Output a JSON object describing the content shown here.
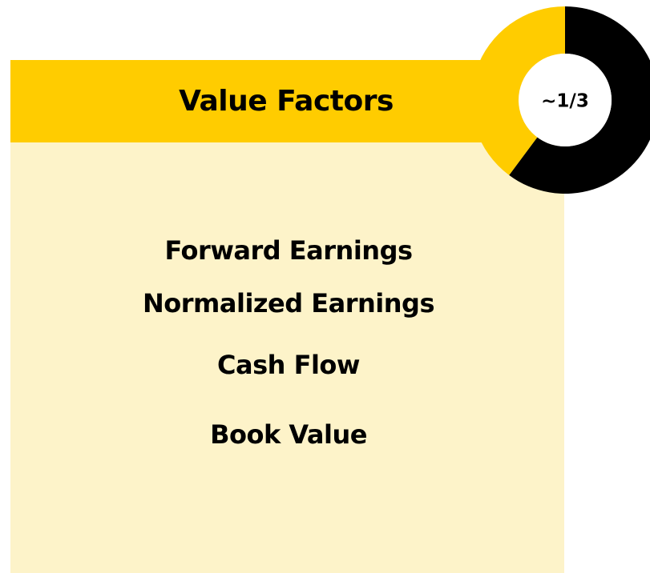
{
  "header": {
    "title": "Value Factors",
    "badge": "~1/3"
  },
  "items": [
    "Forward Earnings",
    "Normalized Earnings",
    "Cash Flow",
    "Book Value"
  ]
}
